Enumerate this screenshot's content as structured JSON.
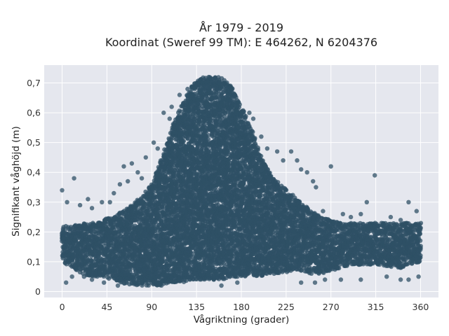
{
  "chart_data": {
    "type": "scatter",
    "title": "År 1979 - 2019",
    "subtitle": "Koordinat (Sweref 99 TM): E 464262, N 6204376",
    "xlabel": "Vågriktning (grader)",
    "ylabel": "Signifikant våghöjd (m)",
    "xlim": [
      -18,
      378
    ],
    "ylim": [
      -0.02,
      0.76
    ],
    "xticks": [
      0,
      45,
      90,
      135,
      180,
      225,
      270,
      315,
      360
    ],
    "xtick_labels": [
      "0",
      "45",
      "90",
      "135",
      "180",
      "225",
      "270",
      "315",
      "360"
    ],
    "yticks": [
      0,
      0.1,
      0.2,
      0.3,
      0.4,
      0.5,
      0.6,
      0.7
    ],
    "ytick_labels": [
      "0",
      "0,1",
      "0,2",
      "0,3",
      "0,4",
      "0,5",
      "0,6",
      "0,7"
    ],
    "grid": true,
    "marker_color": "#2f5066",
    "plot_background": "#e5e7ee",
    "envelope": {
      "x": [
        0,
        5,
        10,
        20,
        30,
        40,
        50,
        60,
        70,
        80,
        90,
        100,
        110,
        120,
        130,
        140,
        150,
        160,
        170,
        180,
        190,
        200,
        210,
        220,
        230,
        240,
        250,
        260,
        270,
        280,
        290,
        300,
        310,
        320,
        330,
        340,
        350,
        360
      ],
      "ymin": [
        0.1,
        0.09,
        0.08,
        0.06,
        0.05,
        0.05,
        0.04,
        0.03,
        0.02,
        0.02,
        0.02,
        0.02,
        0.03,
        0.03,
        0.04,
        0.04,
        0.04,
        0.04,
        0.05,
        0.05,
        0.05,
        0.05,
        0.06,
        0.06,
        0.07,
        0.07,
        0.06,
        0.06,
        0.07,
        0.08,
        0.09,
        0.09,
        0.09,
        0.09,
        0.08,
        0.08,
        0.09,
        0.1
      ],
      "ymax": [
        0.22,
        0.22,
        0.22,
        0.23,
        0.23,
        0.24,
        0.25,
        0.27,
        0.29,
        0.32,
        0.36,
        0.45,
        0.55,
        0.63,
        0.69,
        0.72,
        0.72,
        0.72,
        0.69,
        0.62,
        0.55,
        0.45,
        0.39,
        0.36,
        0.33,
        0.3,
        0.27,
        0.25,
        0.24,
        0.23,
        0.23,
        0.23,
        0.23,
        0.23,
        0.23,
        0.23,
        0.23,
        0.23
      ]
    },
    "outliers": [
      {
        "x": 0,
        "y": 0.34
      },
      {
        "x": 5,
        "y": 0.3
      },
      {
        "x": 12,
        "y": 0.38
      },
      {
        "x": 18,
        "y": 0.29
      },
      {
        "x": 26,
        "y": 0.31
      },
      {
        "x": 30,
        "y": 0.28
      },
      {
        "x": 40,
        "y": 0.3
      },
      {
        "x": 48,
        "y": 0.3
      },
      {
        "x": 52,
        "y": 0.33
      },
      {
        "x": 58,
        "y": 0.36
      },
      {
        "x": 62,
        "y": 0.42
      },
      {
        "x": 66,
        "y": 0.37
      },
      {
        "x": 70,
        "y": 0.43
      },
      {
        "x": 76,
        "y": 0.4
      },
      {
        "x": 80,
        "y": 0.38
      },
      {
        "x": 84,
        "y": 0.45
      },
      {
        "x": 92,
        "y": 0.5
      },
      {
        "x": 96,
        "y": 0.48
      },
      {
        "x": 102,
        "y": 0.6
      },
      {
        "x": 108,
        "y": 0.58
      },
      {
        "x": 110,
        "y": 0.62
      },
      {
        "x": 118,
        "y": 0.66
      },
      {
        "x": 126,
        "y": 0.68
      },
      {
        "x": 188,
        "y": 0.6
      },
      {
        "x": 192,
        "y": 0.58
      },
      {
        "x": 200,
        "y": 0.52
      },
      {
        "x": 206,
        "y": 0.48
      },
      {
        "x": 216,
        "y": 0.47
      },
      {
        "x": 222,
        "y": 0.44
      },
      {
        "x": 230,
        "y": 0.47
      },
      {
        "x": 236,
        "y": 0.44
      },
      {
        "x": 240,
        "y": 0.41
      },
      {
        "x": 246,
        "y": 0.4
      },
      {
        "x": 252,
        "y": 0.37
      },
      {
        "x": 255,
        "y": 0.35
      },
      {
        "x": 262,
        "y": 0.27
      },
      {
        "x": 270,
        "y": 0.42
      },
      {
        "x": 282,
        "y": 0.26
      },
      {
        "x": 290,
        "y": 0.25
      },
      {
        "x": 300,
        "y": 0.26
      },
      {
        "x": 306,
        "y": 0.3
      },
      {
        "x": 314,
        "y": 0.39
      },
      {
        "x": 330,
        "y": 0.25
      },
      {
        "x": 340,
        "y": 0.24
      },
      {
        "x": 348,
        "y": 0.3
      },
      {
        "x": 356,
        "y": 0.27
      },
      {
        "x": 4,
        "y": 0.03
      },
      {
        "x": 10,
        "y": 0.05
      },
      {
        "x": 22,
        "y": 0.05
      },
      {
        "x": 30,
        "y": 0.04
      },
      {
        "x": 42,
        "y": 0.03
      },
      {
        "x": 56,
        "y": 0.02
      },
      {
        "x": 160,
        "y": 0.02
      },
      {
        "x": 176,
        "y": 0.03
      },
      {
        "x": 240,
        "y": 0.03
      },
      {
        "x": 254,
        "y": 0.03
      },
      {
        "x": 264,
        "y": 0.04
      },
      {
        "x": 280,
        "y": 0.04
      },
      {
        "x": 300,
        "y": 0.04
      },
      {
        "x": 326,
        "y": 0.05
      },
      {
        "x": 340,
        "y": 0.04
      },
      {
        "x": 348,
        "y": 0.04
      },
      {
        "x": 358,
        "y": 0.05
      }
    ]
  }
}
